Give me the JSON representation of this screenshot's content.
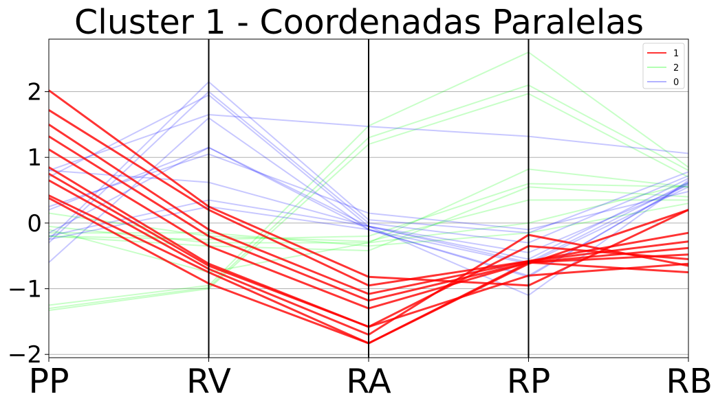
{
  "chart_data": {
    "type": "parallel_coordinates",
    "title": "Cluster 1 - Coordenadas Paralelas",
    "categories": [
      "PP",
      "RV",
      "RA",
      "RP",
      "RB"
    ],
    "ylim": [
      -2.05,
      2.8
    ],
    "yticks": [
      2,
      1,
      0,
      -1,
      -2
    ],
    "ytick_labels": [
      "2",
      "1",
      "0",
      "−1",
      "−2"
    ],
    "grid": "horizontal",
    "legend": "top-right",
    "series": [
      {
        "name": "1",
        "color": "#ff0000",
        "lines": [
          [
            2.02,
            0.25,
            -0.82,
            -0.95,
            0.2
          ],
          [
            1.72,
            0.2,
            -0.95,
            -0.58,
            -0.15
          ],
          [
            1.5,
            -0.1,
            -1.08,
            -0.58,
            -0.28
          ],
          [
            1.32,
            -0.2,
            -1.18,
            -0.6,
            -0.38
          ],
          [
            1.12,
            -0.35,
            -1.3,
            -0.6,
            -0.48
          ],
          [
            0.85,
            -0.62,
            -1.58,
            -0.35,
            -0.55
          ],
          [
            0.75,
            -0.65,
            -1.58,
            -0.8,
            -0.62
          ],
          [
            0.65,
            -0.7,
            -1.7,
            -0.18,
            -0.65
          ],
          [
            0.42,
            -0.75,
            -1.83,
            -0.6,
            -0.75
          ],
          [
            0.38,
            -0.92,
            -1.83,
            -0.62,
            0.2
          ]
        ]
      },
      {
        "name": "2",
        "color": "#00ff00",
        "lines": [
          [
            -1.25,
            -0.95,
            1.48,
            2.6,
            0.85
          ],
          [
            -1.3,
            -0.98,
            1.3,
            2.1,
            0.8
          ],
          [
            -1.33,
            -1.0,
            1.2,
            1.97,
            0.7
          ],
          [
            -0.1,
            -0.75,
            -0.3,
            0.82,
            0.55
          ],
          [
            -0.2,
            -0.25,
            -0.2,
            0.6,
            0.55
          ],
          [
            -0.2,
            -0.35,
            -0.42,
            0.55,
            0.4
          ],
          [
            0.15,
            -0.2,
            -0.28,
            0.35,
            0.35
          ],
          [
            -0.05,
            -0.3,
            -0.3,
            0.0,
            0.6
          ],
          [
            -0.15,
            -0.15,
            -0.35,
            -0.15,
            0.3
          ]
        ]
      },
      {
        "name": "0",
        "color": "#0000ff",
        "lines": [
          [
            -0.25,
            2.15,
            0.05,
            -0.15,
            0.78
          ],
          [
            -0.3,
            2.0,
            0.0,
            -0.3,
            0.72
          ],
          [
            0.7,
            1.95,
            -0.05,
            -0.55,
            0.68
          ],
          [
            0.8,
            1.65,
            1.47,
            1.32,
            1.06
          ],
          [
            -0.6,
            1.6,
            -0.1,
            -0.8,
            0.6
          ],
          [
            0.2,
            1.15,
            -0.05,
            -0.6,
            0.62
          ],
          [
            -0.15,
            1.15,
            -0.1,
            -0.62,
            0.55
          ],
          [
            0.25,
            1.05,
            0.15,
            -0.1,
            0.48
          ],
          [
            0.8,
            0.62,
            -0.05,
            -1.1,
            0.65
          ],
          [
            -0.2,
            0.35,
            -0.05,
            -0.45,
            0.58
          ],
          [
            -0.25,
            0.25,
            -0.1,
            -0.82,
            0.62
          ]
        ]
      }
    ]
  }
}
